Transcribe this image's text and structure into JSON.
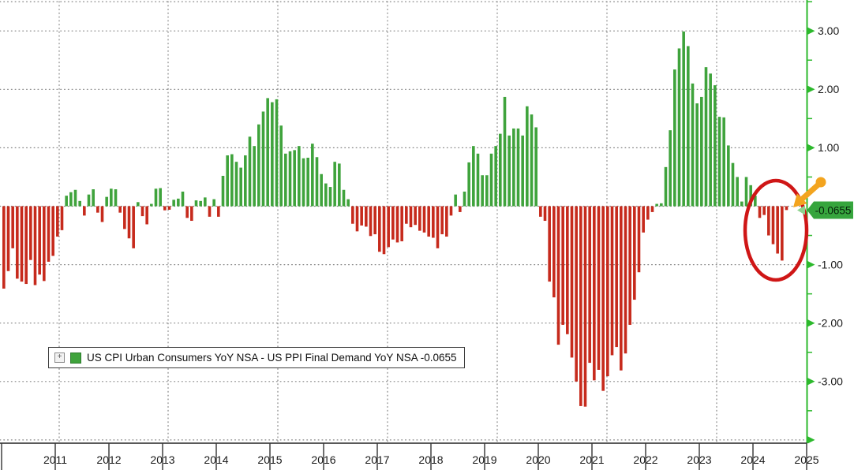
{
  "chart_data": {
    "type": "bar",
    "title": "US CPI Urban Consumers YoY NSA - US PPI Final Demand YoY NSA",
    "start_month": "2011-01",
    "end_month": "2025-08",
    "x_tick_years": [
      "2011",
      "2012",
      "2013",
      "2014",
      "2015",
      "2016",
      "2017",
      "2018",
      "2019",
      "2020",
      "2021",
      "2022",
      "2023",
      "2024",
      "2025"
    ],
    "y_tick_labels": [
      "3.00",
      "2.00",
      "1.00",
      "-1.00",
      "-2.00",
      "-3.00"
    ],
    "y_tick_values": [
      3,
      2,
      1,
      -1,
      -2,
      -3
    ],
    "ylim": [
      -4.0,
      3.5
    ],
    "grid": true,
    "legend_position": "bottom-left",
    "last_value": -0.0655,
    "monthly_values": [
      -1.41,
      -1.11,
      -0.72,
      -1.24,
      -1.29,
      -1.33,
      -0.92,
      -1.35,
      -1.17,
      -1.28,
      -0.95,
      -0.85,
      -0.52,
      -0.41,
      0.18,
      0.24,
      0.28,
      0.09,
      -0.16,
      0.2,
      0.29,
      -0.11,
      -0.27,
      0.16,
      0.3,
      0.29,
      -0.11,
      -0.39,
      -0.55,
      -0.72,
      0.07,
      -0.17,
      -0.31,
      0.04,
      0.3,
      0.31,
      -0.07,
      -0.06,
      0.11,
      0.13,
      0.25,
      -0.2,
      -0.25,
      0.1,
      0.09,
      0.15,
      -0.18,
      0.12,
      -0.18,
      0.52,
      0.87,
      0.89,
      0.76,
      0.66,
      0.87,
      1.19,
      1.03,
      1.4,
      1.62,
      1.85,
      1.78,
      1.83,
      1.38,
      0.9,
      0.94,
      0.96,
      1.03,
      0.82,
      0.83,
      1.07,
      0.84,
      0.55,
      0.39,
      0.33,
      0.76,
      0.73,
      0.28,
      0.12,
      -0.3,
      -0.43,
      -0.33,
      -0.35,
      -0.51,
      -0.48,
      -0.78,
      -0.82,
      -0.7,
      -0.57,
      -0.62,
      -0.6,
      -0.3,
      -0.36,
      -0.32,
      -0.42,
      -0.45,
      -0.52,
      -0.54,
      -0.72,
      -0.48,
      -0.52,
      -0.16,
      0.2,
      -0.1,
      0.25,
      0.75,
      1.03,
      0.9,
      0.53,
      0.53,
      0.9,
      1.03,
      1.24,
      1.87,
      1.21,
      1.33,
      1.33,
      1.21,
      1.71,
      1.57,
      1.35,
      -0.18,
      -0.25,
      -1.29,
      -1.56,
      -2.37,
      -2.03,
      -2.19,
      -2.59,
      -3.0,
      -3.42,
      -3.43,
      -2.68,
      -2.98,
      -2.8,
      -3.16,
      -2.91,
      -2.55,
      -2.41,
      -2.81,
      -2.52,
      -2.03,
      -1.6,
      -1.13,
      -0.45,
      -0.23,
      -0.1,
      0.04,
      0.05,
      0.67,
      1.3,
      2.34,
      2.7,
      2.99,
      2.74,
      2.1,
      1.76,
      1.87,
      2.38,
      2.27,
      2.07,
      1.53,
      1.52,
      1.04,
      0.74,
      0.5,
      0.08,
      0.5,
      0.36,
      0.18,
      -0.2,
      -0.15,
      -0.5,
      -0.65,
      -0.81,
      -0.93,
      -0.0655
    ]
  },
  "legend": {
    "collapse_icon": "+",
    "label": "US CPI Urban Consumers YoY NSA - US PPI Final Demand YoY NSA -0.0655"
  },
  "badge": {
    "text": "-0.0655"
  },
  "colors": {
    "positive_bar": "#3fa33c",
    "negative_bar": "#c62a1c",
    "axis_green": "#2db92d",
    "badge_bg": "#36a53d",
    "badge_chevron": "#8ed38e",
    "badge_text": "#06220a",
    "annotation_red": "#cf1616",
    "annotation_orange": "#f3a41f",
    "grid": "#848484",
    "axis_band_line": "#222222",
    "text": "#1a1a1a"
  },
  "annotations": {
    "ellipse": "circle-recent-negative-spread",
    "arrow": "arrow-pointing-to-latest-bars"
  }
}
